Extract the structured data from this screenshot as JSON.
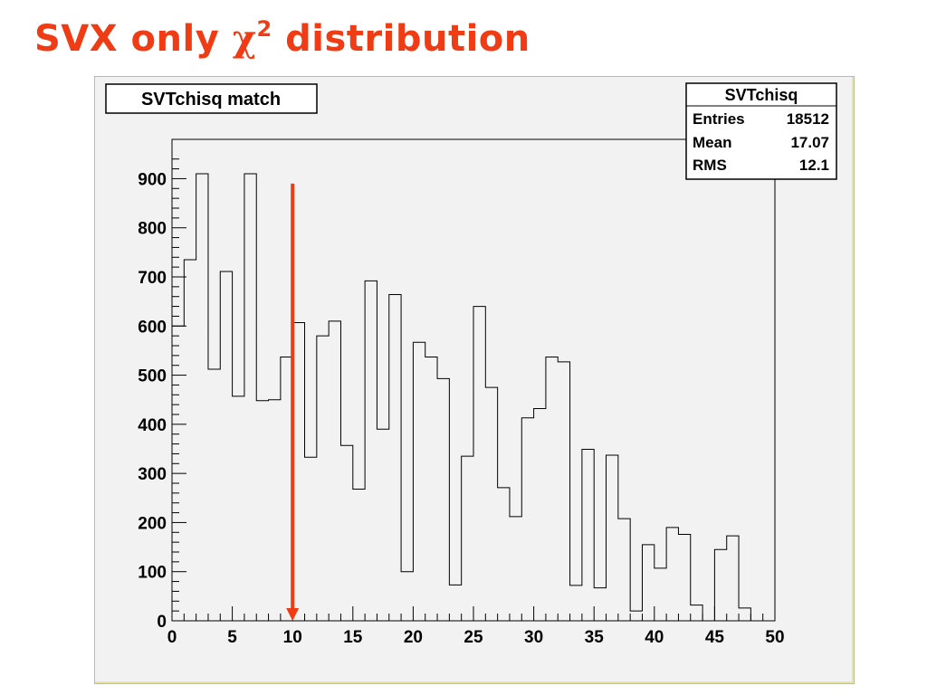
{
  "slide": {
    "title_prefix": "SVX only ",
    "title_symbol": "χ",
    "title_superscript": "2",
    "title_suffix": " distribution",
    "title_color": "#f03c14"
  },
  "chart_data": {
    "type": "bar",
    "histogram_label": "SVTchisq match",
    "stats": {
      "name": "SVTchisq",
      "rows": [
        {
          "label": "Entries",
          "value": "18512"
        },
        {
          "label": "Mean",
          "value": "17.07"
        },
        {
          "label": "RMS",
          "value": "12.1"
        }
      ]
    },
    "bin_edges_start": 0,
    "bin_width": 1,
    "values": [
      600,
      735,
      910,
      512,
      711,
      457,
      910,
      448,
      450,
      537,
      607,
      333,
      580,
      610,
      357,
      268,
      692,
      390,
      664,
      100,
      567,
      537,
      493,
      73,
      335,
      640,
      475,
      271,
      212,
      413,
      432,
      537,
      527,
      72,
      349,
      67,
      337,
      208,
      20,
      155,
      107,
      190,
      176,
      32,
      0,
      145,
      173,
      26,
      0,
      0
    ],
    "xlim": [
      0,
      50
    ],
    "ylim": [
      0,
      980
    ],
    "xticks": [
      0,
      5,
      10,
      15,
      20,
      25,
      30,
      35,
      40,
      45,
      50
    ],
    "yticks": [
      0,
      100,
      200,
      300,
      400,
      500,
      600,
      700,
      800,
      900
    ],
    "annotation": {
      "type": "arrow",
      "x": 10,
      "y_from": 890,
      "y_to": 0,
      "color": "#f03c14"
    }
  }
}
